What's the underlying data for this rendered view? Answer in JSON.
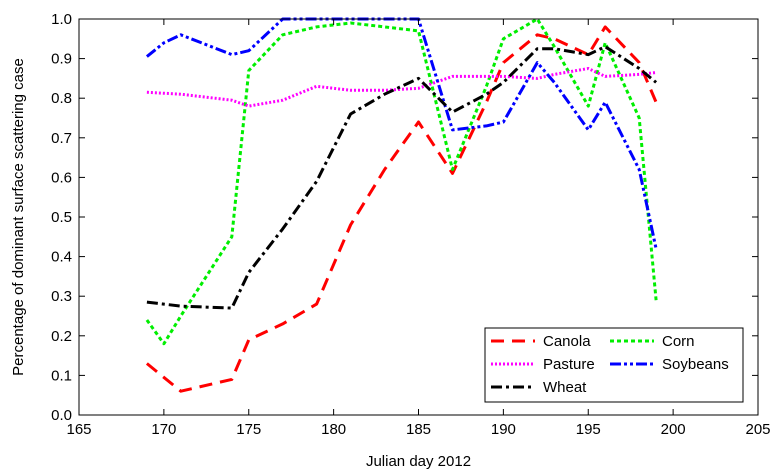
{
  "chart_data": {
    "type": "line",
    "xlabel": "Julian day 2012",
    "ylabel": "Percentage of dominant surface scattering case",
    "xlim": [
      165,
      205
    ],
    "ylim": [
      0.0,
      1.0
    ],
    "xticks": [
      165,
      170,
      175,
      180,
      185,
      190,
      195,
      200,
      205
    ],
    "xtick_labels": [
      "165",
      "170",
      "175",
      "180",
      "185",
      "190",
      "195",
      "200",
      "205"
    ],
    "yticks": [
      0.0,
      0.1,
      0.2,
      0.3,
      0.4,
      0.5,
      0.6,
      0.7,
      0.8,
      0.9,
      1.0
    ],
    "ytick_labels": [
      "0.0",
      "0.1",
      "0.2",
      "0.3",
      "0.4",
      "0.5",
      "0.6",
      "0.7",
      "0.8",
      "0.9",
      "1.0"
    ],
    "grid": false,
    "legend_position": "bottom-right",
    "series": [
      {
        "name": "Canola",
        "color": "#ff0000",
        "dash": "dashed",
        "x": [
          169,
          171,
          174,
          175,
          177,
          179,
          181,
          183,
          185,
          187,
          189,
          190,
          192,
          193,
          195,
          196,
          198,
          199
        ],
        "y": [
          0.13,
          0.06,
          0.09,
          0.19,
          0.23,
          0.28,
          0.48,
          0.62,
          0.74,
          0.61,
          0.79,
          0.89,
          0.96,
          0.95,
          0.91,
          0.98,
          0.89,
          0.79
        ]
      },
      {
        "name": "Corn",
        "color": "#00ee00",
        "dash": "dotted",
        "x": [
          169,
          170,
          171,
          174,
          175,
          177,
          179,
          181,
          183,
          185,
          187,
          189,
          190,
          192,
          193,
          195,
          196,
          198,
          199
        ],
        "y": [
          0.24,
          0.18,
          0.25,
          0.45,
          0.87,
          0.96,
          0.98,
          0.99,
          0.98,
          0.97,
          0.62,
          0.83,
          0.95,
          1.0,
          0.93,
          0.78,
          0.94,
          0.75,
          0.29
        ]
      },
      {
        "name": "Pasture",
        "color": "#ff00ff",
        "dash": "finedot",
        "x": [
          169,
          171,
          174,
          175,
          177,
          179,
          181,
          183,
          185,
          187,
          189,
          190,
          192,
          193,
          195,
          196,
          198,
          199
        ],
        "y": [
          0.815,
          0.81,
          0.795,
          0.78,
          0.795,
          0.83,
          0.82,
          0.82,
          0.825,
          0.855,
          0.855,
          0.855,
          0.85,
          0.86,
          0.875,
          0.855,
          0.86,
          0.865
        ]
      },
      {
        "name": "Soybeans",
        "color": "#0000ff",
        "dash": "dashdotdot",
        "x": [
          169,
          170,
          171,
          174,
          175,
          177,
          179,
          181,
          183,
          185,
          187,
          189,
          190,
          192,
          193,
          195,
          196,
          198,
          199
        ],
        "y": [
          0.905,
          0.94,
          0.96,
          0.91,
          0.92,
          1.0,
          1.0,
          1.0,
          1.0,
          1.0,
          0.72,
          0.73,
          0.74,
          0.89,
          0.84,
          0.72,
          0.79,
          0.62,
          0.42
        ]
      },
      {
        "name": "Wheat",
        "color": "#000000",
        "dash": "dashdot",
        "x": [
          169,
          171,
          174,
          175,
          177,
          179,
          181,
          183,
          185,
          187,
          189,
          190,
          192,
          193,
          195,
          196,
          198,
          199
        ],
        "y": [
          0.285,
          0.275,
          0.27,
          0.36,
          0.47,
          0.59,
          0.76,
          0.81,
          0.85,
          0.765,
          0.81,
          0.84,
          0.925,
          0.925,
          0.91,
          0.93,
          0.875,
          0.84
        ]
      }
    ]
  }
}
